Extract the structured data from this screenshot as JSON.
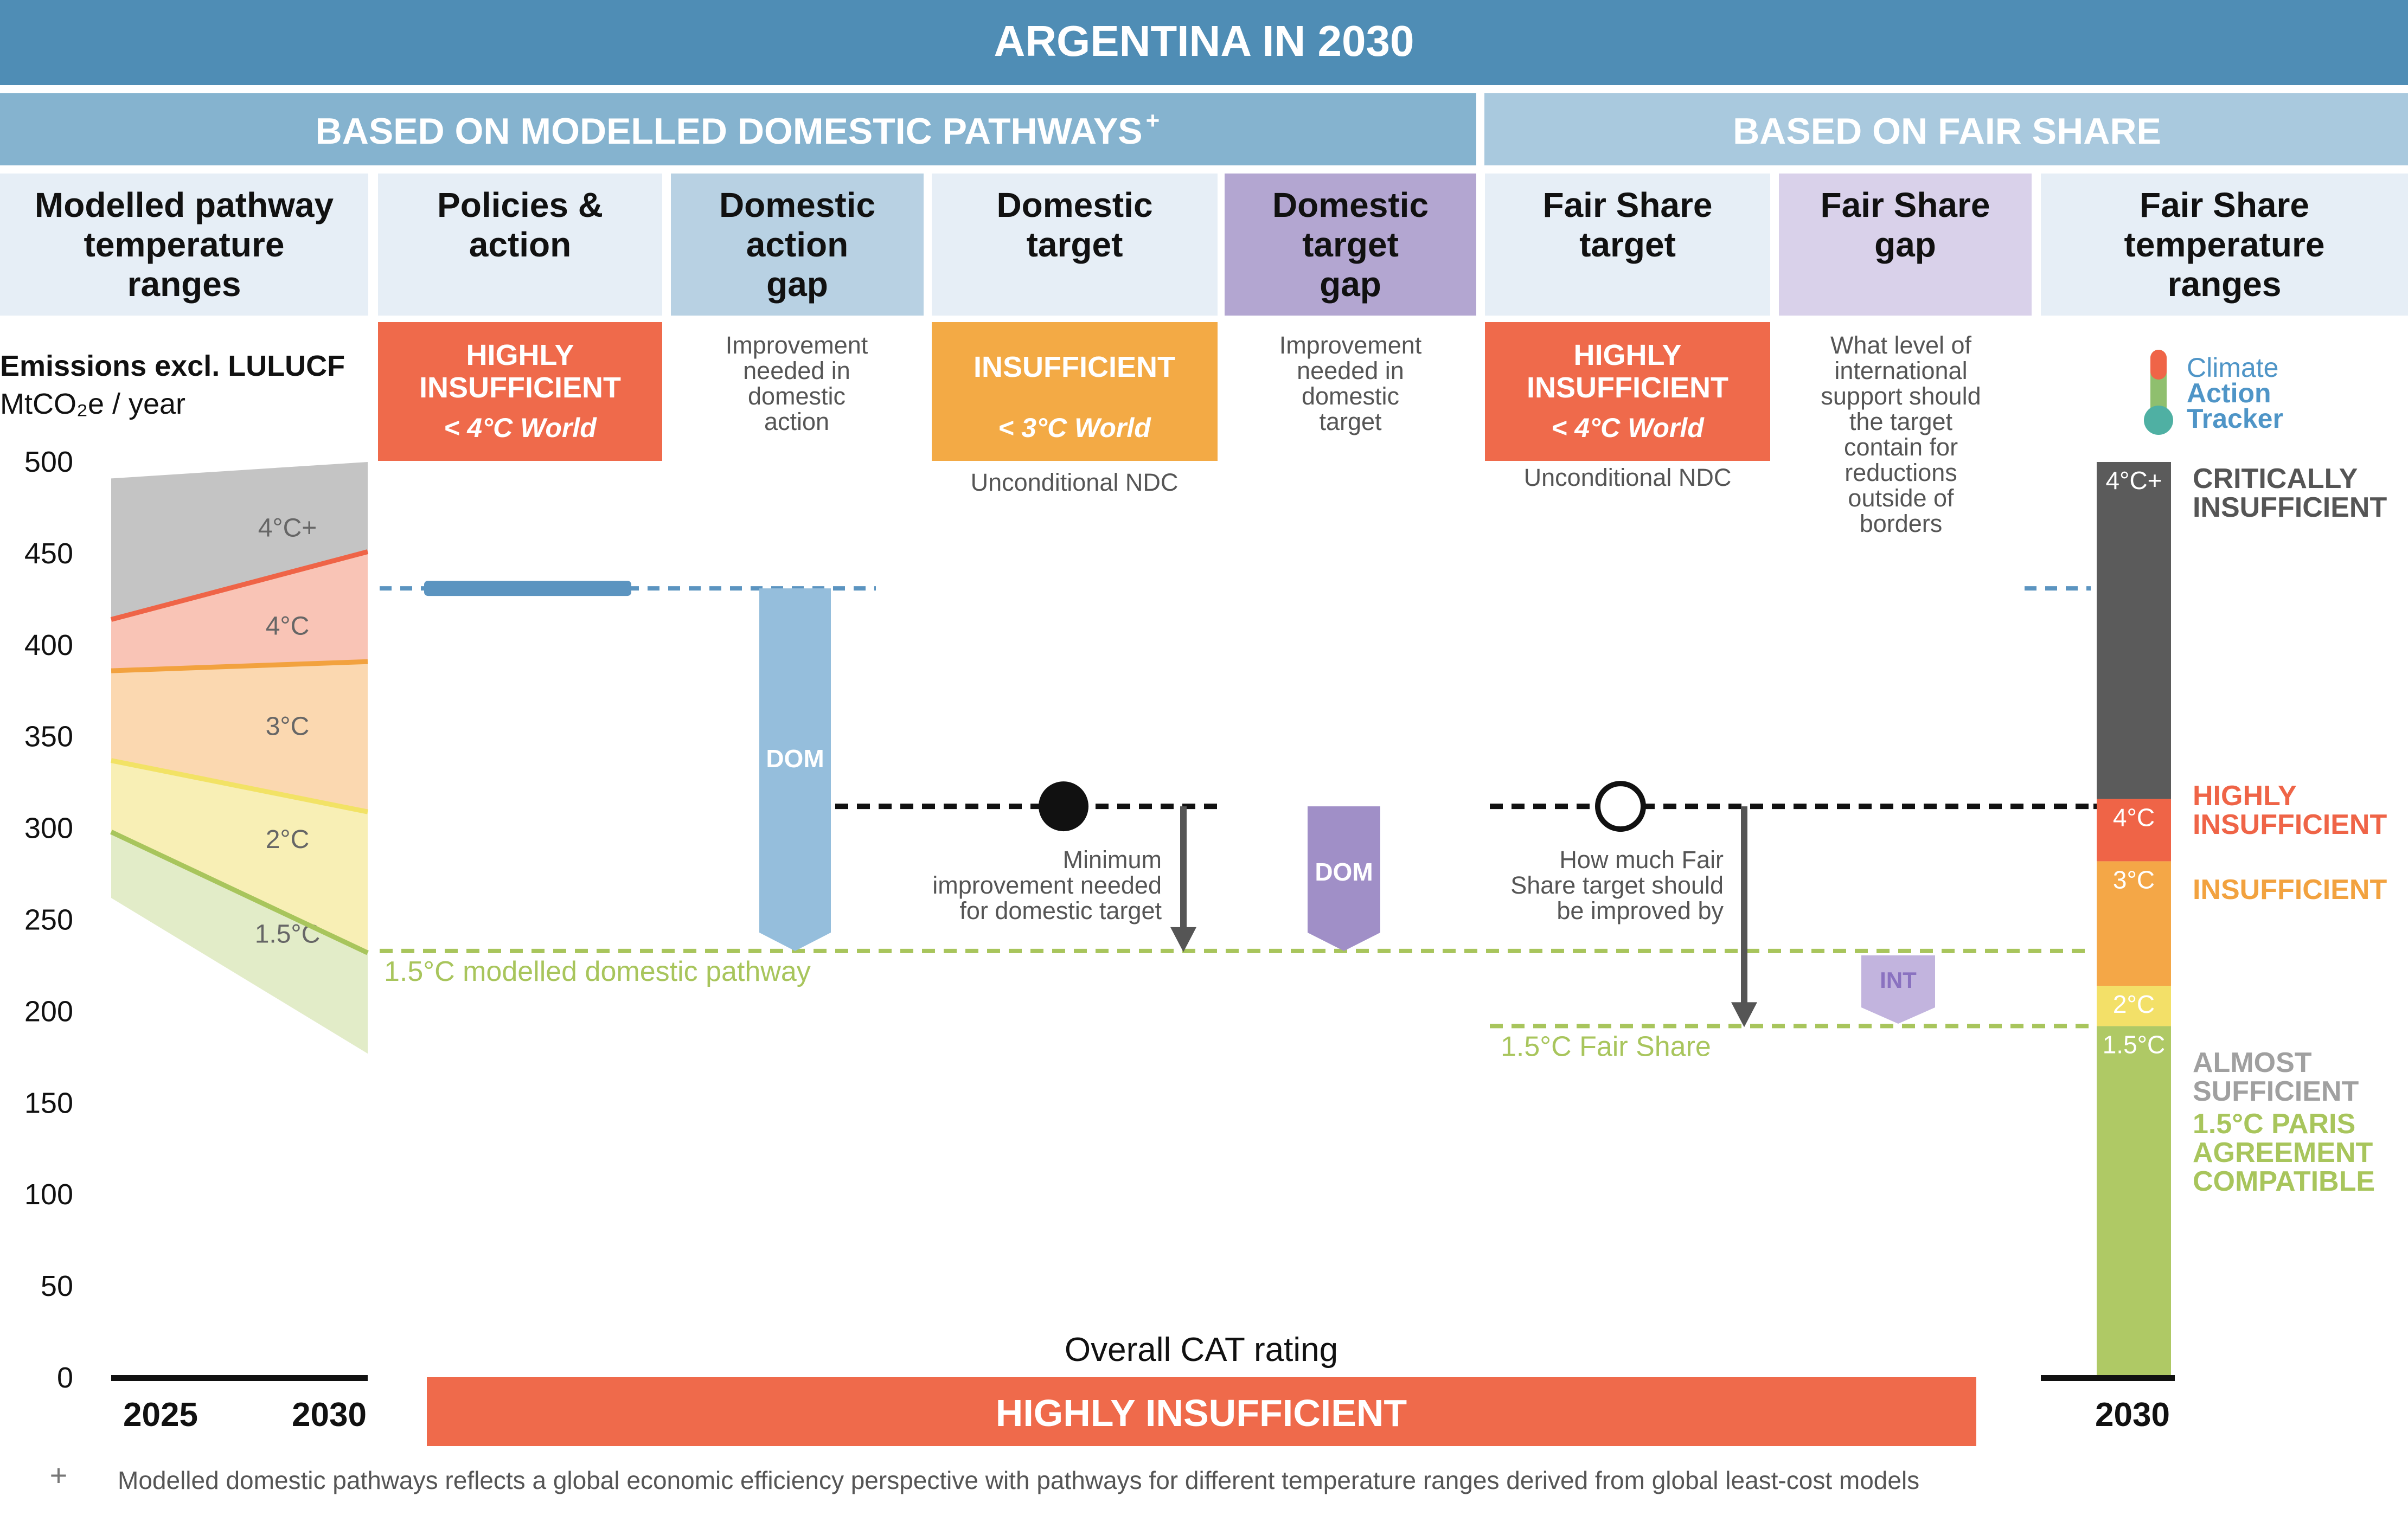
{
  "title": "ARGENTINA IN 2030",
  "sections": {
    "modelled": "BASED ON MODELLED DOMESTIC PATHWAYS",
    "modelled_mark": "+",
    "fair": "BASED ON FAIR SHARE"
  },
  "columns": [
    {
      "lines": [
        "Modelled pathway",
        "temperature",
        "ranges"
      ]
    },
    {
      "lines": [
        "Policies &",
        "action"
      ]
    },
    {
      "lines": [
        "Domestic",
        "action",
        "gap"
      ]
    },
    {
      "lines": [
        "Domestic",
        "target"
      ]
    },
    {
      "lines": [
        "Domestic",
        "target",
        "gap"
      ]
    },
    {
      "lines": [
        "Fair Share",
        "target"
      ]
    },
    {
      "lines": [
        "Fair Share",
        "gap"
      ]
    },
    {
      "lines": [
        "Fair Share",
        "temperature",
        "ranges"
      ]
    }
  ],
  "ratings": {
    "policies": {
      "lines": [
        "HIGHLY",
        "INSUFFICIENT"
      ],
      "sub": "< 4°C World"
    },
    "domestic_target": {
      "lines": [
        "INSUFFICIENT"
      ],
      "sub": "< 3°C World",
      "note": "Unconditional NDC"
    },
    "fair_target": {
      "lines": [
        "HIGHLY",
        "INSUFFICIENT"
      ],
      "sub": "< 4°C World",
      "note": "Unconditional NDC"
    }
  },
  "notes": {
    "dom_action_gap": [
      "Improvement",
      "needed in",
      "domestic",
      "action"
    ],
    "dom_target_gap": [
      "Improvement",
      "needed in",
      "domestic",
      "target"
    ],
    "fair_gap": [
      "What level of",
      "international",
      "support should",
      "the target",
      "contain for",
      "reductions",
      "outside of",
      "borders"
    ],
    "min_improvement": [
      "Minimum",
      "improvement needed",
      "for domestic target"
    ],
    "fair_improvement": [
      "How much Fair",
      "Share target should",
      "be improved by"
    ]
  },
  "logo": [
    "Climate",
    "Action",
    "Tracker"
  ],
  "overall": {
    "label": "Overall CAT rating",
    "value": "HIGHLY INSUFFICIENT"
  },
  "footnote_mark": "+",
  "footnote": "Modelled domestic pathways reflects a global economic efficiency perspective with pathways for different temperature ranges derived from global least-cost models",
  "chart_data": {
    "type": "area",
    "ylabel": "Emissions excl. LULUCF",
    "yunit": "MtCO₂e / year",
    "ylim": [
      0,
      500
    ],
    "yticks": [
      0,
      50,
      100,
      150,
      200,
      250,
      300,
      350,
      400,
      450,
      500
    ],
    "x": [
      "2025",
      "2030"
    ],
    "x_fair": "2030",
    "bands": [
      {
        "name": "4°C+",
        "lower": [
          414,
          451
        ],
        "upper": [
          491,
          500
        ],
        "color": "#c4c4c4"
      },
      {
        "name": "4°C",
        "lower": [
          386,
          391
        ],
        "upper": [
          414,
          451
        ],
        "color": "#f9c4b6"
      },
      {
        "name": "3°C",
        "lower": [
          337,
          309
        ],
        "upper": [
          386,
          391
        ],
        "color": "#fbd8b0"
      },
      {
        "name": "2°C",
        "lower": [
          298,
          232
        ],
        "upper": [
          337,
          309
        ],
        "color": "#f8efb5"
      },
      {
        "name": "1.5°C",
        "lower": [
          262,
          177
        ],
        "upper": [
          298,
          232
        ],
        "color": "#e2ecc8"
      }
    ],
    "boundaries": [
      {
        "values": [
          414,
          451
        ],
        "color": "#ef6447"
      },
      {
        "values": [
          386,
          391
        ],
        "color": "#f2a23f"
      },
      {
        "values": [
          337,
          309
        ],
        "color": "#f2e265"
      },
      {
        "values": [
          298,
          232
        ],
        "color": "#a8c55c"
      }
    ],
    "policies_action": 431,
    "domestic_target": 312,
    "fair_share_target": 312,
    "pathway_1_5": 233,
    "fair_share_1_5": 192,
    "labels": {
      "pathway_1_5": "1.5°C modelled domestic pathway",
      "fair_share_1_5": "1.5°C Fair Share",
      "dom": "DOM",
      "int": "INT"
    },
    "fair_share_ranges": [
      {
        "label": "1.5°C",
        "from": 0,
        "to": 192,
        "color": "#afc965"
      },
      {
        "label": "2°C",
        "from": 192,
        "to": 214,
        "color": "#f3e068"
      },
      {
        "label": "3°C",
        "from": 214,
        "to": 282,
        "color": "#f4a747"
      },
      {
        "label": "4°C",
        "from": 282,
        "to": 316,
        "color": "#ef6447"
      },
      {
        "label": "4°C+",
        "from": 316,
        "to": 500,
        "color": "#5b5b5b"
      }
    ],
    "rating_labels": [
      {
        "lines": [
          "CRITICALLY",
          "INSUFFICIENT"
        ],
        "color": "#555555"
      },
      {
        "lines": [
          "HIGHLY",
          "INSUFFICIENT"
        ],
        "color": "#ef6447"
      },
      {
        "lines": [
          "INSUFFICIENT"
        ],
        "color": "#f2a23f"
      },
      {
        "lines": [
          "ALMOST",
          "SUFFICIENT"
        ],
        "color": "#a0a0a0"
      },
      {
        "lines": [
          "1.5°C PARIS",
          "AGREEMENT",
          "COMPATIBLE"
        ],
        "color": "#a8c55c"
      }
    ]
  },
  "colors": {
    "title_bar": "#4f8db5",
    "modelled_bar": "#85b3cf",
    "fair_bar": "#a9c9de",
    "header_light": "#e6eef6",
    "header_blue": "#b8d1e3",
    "header_purple": "#b3a6d1",
    "header_lilac": "#d9d1ea",
    "highly_insufficient": "#ef6a4b",
    "insufficient": "#f3aa45",
    "policy_blue": "#5b94c0",
    "dom_blue": "#95bedc",
    "dom_purple": "#a08fc7",
    "int_purple": "#c2b4de",
    "arrow": "#555555",
    "green": "#a8c55c"
  }
}
